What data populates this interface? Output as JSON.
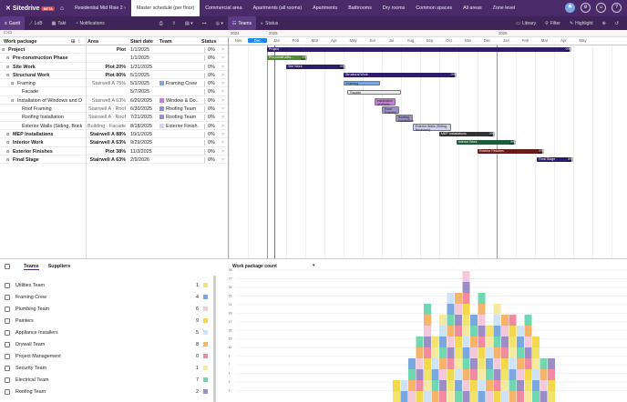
{
  "app": {
    "name": "Sitedrive",
    "beta": "BETA",
    "project": "Residential Mid Rise 2"
  },
  "tabs": [
    "Master schedule (per floor)",
    "Commercial area",
    "Apartments (all rooms)",
    "Apartments",
    "Bathrooms",
    "Dry rooms",
    "Common spaces",
    "All areas",
    "Zone level"
  ],
  "toolbar": {
    "items": [
      "Gantt",
      "LoB",
      "Takt",
      "Notifications"
    ],
    "teams": "Teams",
    "status": "Status",
    "library": "Library",
    "filter": "Filter",
    "highlight": "Highlight"
  },
  "columns": {
    "package": "Work package",
    "area": "Area",
    "start": "Start date",
    "team": "Team",
    "status": "Status"
  },
  "rows": [
    {
      "name": "Project",
      "area": "Plot",
      "start": "1/1/2025",
      "team": "",
      "status": "0%",
      "lvl": 0,
      "bold": true
    },
    {
      "name": "Pre-construction Phase",
      "area": "",
      "start": "1/1/2025",
      "team": "",
      "status": "0%",
      "lvl": 1,
      "bold": true
    },
    {
      "name": "Site Work",
      "area": "Plot 20%",
      "start": "1/31/2025",
      "team": "",
      "status": "0%",
      "lvl": 1,
      "bold": true
    },
    {
      "name": "Structural Work",
      "area": "Plot 80%",
      "start": "5/1/2025",
      "team": "",
      "status": "0%",
      "lvl": 1,
      "bold": true
    },
    {
      "name": "Framing",
      "area": "Stairwell A 75%",
      "start": "5/1/2025",
      "team": "Framing Crew",
      "status": "0%",
      "lvl": 2,
      "bold": false,
      "color": "#7aa7e0"
    },
    {
      "name": "Facade",
      "area": "",
      "start": "5/7/2025",
      "team": "",
      "status": "0%",
      "lvl": 3,
      "bold": false
    },
    {
      "name": "Installation of Windows and Doors",
      "area": "Stairwell A 63%",
      "start": "6/20/2025",
      "team": "Window & Do...",
      "status": "0%",
      "lvl": 2,
      "bold": false,
      "color": "#c77dd8"
    },
    {
      "name": "Roof Framing",
      "area": "Stairwell A · Roof",
      "start": "6/30/2025",
      "team": "Roofing Team",
      "status": "0%",
      "lvl": 3,
      "bold": false,
      "color": "#9b8ec7"
    },
    {
      "name": "Roofing Installation",
      "area": "Stairwell A · Roof",
      "start": "7/21/2025",
      "team": "Roofing Team",
      "status": "0%",
      "lvl": 3,
      "bold": false,
      "color": "#9b8ec7"
    },
    {
      "name": "Exterior Walls (Siding, Brickwork)",
      "area": "Building · Facade",
      "start": "8/18/2025",
      "team": "Exterior Finish...",
      "status": "0%",
      "lvl": 3,
      "bold": false,
      "color": "#d3d3f0"
    },
    {
      "name": "MEP Installations",
      "area": "Stairwell A 88%",
      "start": "10/1/2025",
      "team": "",
      "status": "0%",
      "lvl": 1,
      "bold": true
    },
    {
      "name": "Interior Work",
      "area": "Stairwell A 63%",
      "start": "9/29/2025",
      "team": "",
      "status": "0%",
      "lvl": 1,
      "bold": true
    },
    {
      "name": "Exterior Finishes",
      "area": "Plot 38%",
      "start": "11/3/2025",
      "team": "",
      "status": "0%",
      "lvl": 1,
      "bold": true
    },
    {
      "name": "Final Stage",
      "area": "Stairwell A 63%",
      "start": "2/9/2026",
      "team": "",
      "status": "0%",
      "lvl": 1,
      "bold": true
    }
  ],
  "gantt": {
    "years": [
      "2024",
      "2025",
      "2026"
    ],
    "months": [
      "Nov",
      "Dec",
      "Jan",
      "Feb",
      "Mar",
      "Apr",
      "May",
      "Jun",
      "Jul",
      "Aug",
      "Sep",
      "Oct",
      "Nov",
      "Dec",
      "Jan",
      "Feb",
      "Mar",
      "Apr",
      "May"
    ],
    "today": "Dec",
    "bars": [
      {
        "label": "Project",
        "start": 2.0,
        "end": 17.8,
        "color": "#2d1d6b",
        "pct": "0%"
      },
      {
        "label": "Pre-constructio...",
        "start": 2.0,
        "end": 4.0,
        "color": "#4f8f2f",
        "pct": "0%"
      },
      {
        "label": "Site Work",
        "start": 3.0,
        "end": 6.0,
        "color": "#2d1d6b",
        "pct": "0%"
      },
      {
        "label": "Structural Work",
        "start": 6.0,
        "end": 11.8,
        "color": "#2d1d6b",
        "pct": "0%"
      },
      {
        "label": "Framing",
        "start": 6.0,
        "end": 7.9,
        "color": "#7aa7e0",
        "pct": ""
      },
      {
        "label": "Facade",
        "start": 6.2,
        "end": 9.0,
        "color": "#eeeeee",
        "pct": ""
      },
      {
        "label": "Installation of Windo...",
        "start": 7.6,
        "end": 8.7,
        "color": "#c77dd8",
        "pct": ""
      },
      {
        "label": "Roof Framing",
        "start": 8.0,
        "end": 8.9,
        "color": "#9b8ec7",
        "pct": ""
      },
      {
        "label": "Roofing Installation",
        "start": 8.7,
        "end": 9.6,
        "color": "#9b8ec7",
        "pct": ""
      },
      {
        "label": "Exterior Walls (Siding, Brickwork)",
        "start": 9.6,
        "end": 11.6,
        "color": "#d3d3f0",
        "pct": ""
      },
      {
        "label": "MEP Installations",
        "start": 11.0,
        "end": 13.8,
        "color": "#333333",
        "pct": "0%"
      },
      {
        "label": "Interior Work",
        "start": 11.9,
        "end": 14.9,
        "color": "#1f5c3a",
        "pct": "0%"
      },
      {
        "label": "Exterior Finishes",
        "start": 13.0,
        "end": 16.4,
        "color": "#6b1a1a",
        "pct": "0%"
      },
      {
        "label": "Final Stage",
        "start": 16.1,
        "end": 17.9,
        "color": "#2d1d6b",
        "pct": "0%"
      }
    ]
  },
  "bottom": {
    "tabs": [
      "Teams",
      "Suppliers"
    ],
    "chart_title": "Work package count",
    "teams": [
      {
        "name": "Utilities Team",
        "count": "1",
        "color": "#f2e46b"
      },
      {
        "name": "Framing Crew",
        "count": "4",
        "color": "#7aa7e0"
      },
      {
        "name": "Plumbing Team",
        "count": "6",
        "color": "#f3c9d9"
      },
      {
        "name": "Painters",
        "count": "9",
        "color": "#f2d84b"
      },
      {
        "name": "Appliance Installers",
        "count": "5",
        "color": "#cfe3f6"
      },
      {
        "name": "Drywall Team",
        "count": "8",
        "color": "#f7b36a"
      },
      {
        "name": "Project Management",
        "count": "0",
        "color": "#f28aa0"
      },
      {
        "name": "Security Team",
        "count": "1",
        "color": "#f6e9a0"
      },
      {
        "name": "Electrical Team",
        "count": "7",
        "color": "#6fd8b0"
      },
      {
        "name": "Roofing Team",
        "count": "2",
        "color": "#9b8ec7"
      }
    ],
    "yticks": [
      "28",
      "27",
      "25",
      "23",
      "21",
      "19",
      "17",
      "15",
      "13",
      "11",
      "9",
      "7",
      "5",
      "3",
      "1"
    ]
  }
}
